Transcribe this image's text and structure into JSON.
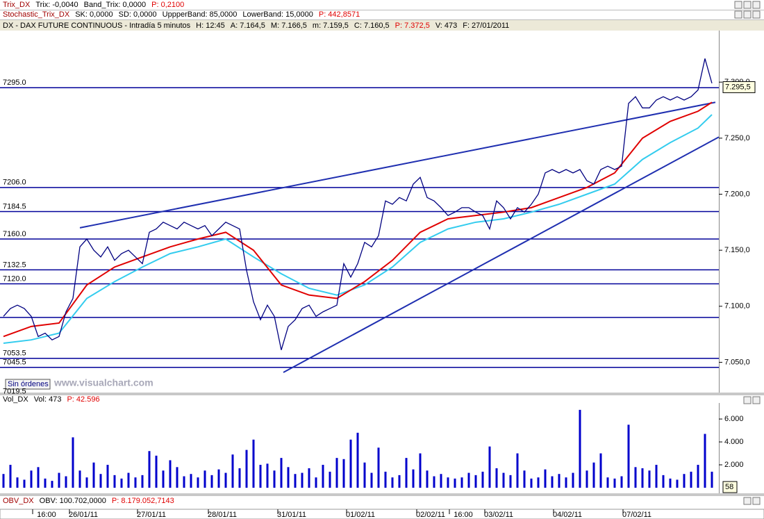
{
  "indicator_rows": [
    {
      "parts": [
        {
          "text": "Trix_DX",
          "color": "#a00000"
        },
        {
          "text": "Trix: -0,0040"
        },
        {
          "text": "Band_Trix: 0,0000"
        },
        {
          "text": "P: 0,2100",
          "color": "#e00000"
        }
      ]
    },
    {
      "parts": [
        {
          "text": "Stochastic_Trix_DX",
          "color": "#a00000"
        },
        {
          "text": "SK: 0,0000"
        },
        {
          "text": "SD: 0,0000"
        },
        {
          "text": "UppperBand: 85,0000"
        },
        {
          "text": "LowerBand: 15,0000"
        },
        {
          "text": "P: 442,8571",
          "color": "#e00000"
        }
      ]
    }
  ],
  "status": "Sin órdenes",
  "watermark": "www.visualchart.com",
  "obv_row": {
    "parts": [
      {
        "text": "OBV_DX",
        "color": "#a00000"
      },
      {
        "text": "OBV: 100.702,0000"
      },
      {
        "text": "P: 8.179.052,7143",
        "color": "#e00000"
      }
    ]
  },
  "chart_data": [
    {
      "type": "line",
      "header_parts": [
        {
          "text": "DX - DAX FUTURE CONTINUOUS - Intradía 5 minutos"
        },
        {
          "text": "H: 12:45"
        },
        {
          "text": "A: 7.164,5"
        },
        {
          "text": "M: 7.166,5"
        },
        {
          "text": "m: 7.159,5"
        },
        {
          "text": "C: 7.160,5"
        },
        {
          "text": "P: 7.372,5",
          "color": "#e00000"
        },
        {
          "text": "V: 473"
        },
        {
          "text": "F: 27/01/2011"
        }
      ],
      "x": [
        0,
        1,
        2,
        3,
        4,
        5,
        6,
        7,
        8,
        9,
        10,
        11,
        12,
        13,
        14,
        15,
        16,
        17,
        18,
        19,
        20,
        21,
        22,
        23,
        24,
        25,
        26,
        27,
        28,
        29,
        30,
        31,
        32,
        33,
        34,
        35,
        36,
        37,
        38,
        39,
        40,
        41,
        42,
        43,
        44,
        45,
        46,
        47,
        48,
        49,
        50,
        51,
        52,
        53,
        54,
        55,
        56,
        57,
        58,
        59,
        60,
        61,
        62,
        63,
        64,
        65,
        66,
        67,
        68,
        69,
        70,
        71,
        72,
        73,
        74,
        75,
        76,
        77,
        78,
        79,
        80,
        81,
        82,
        83,
        84,
        85,
        86,
        87,
        88,
        89,
        90,
        91,
        92,
        93,
        94,
        95,
        96,
        97,
        98,
        99,
        100,
        101,
        102
      ],
      "xlim": [
        -0.5,
        103
      ],
      "xticks": [
        {
          "value": 6.2,
          "label": "16:00"
        },
        {
          "value": 11.5,
          "label": "26/01/11"
        },
        {
          "value": 21.3,
          "label": "27/01/11"
        },
        {
          "value": 31.5,
          "label": "28/01/11"
        },
        {
          "value": 41.5,
          "label": "31/01/11"
        },
        {
          "value": 51.4,
          "label": "01/02/11"
        },
        {
          "value": 61.5,
          "label": "02/02/11"
        },
        {
          "value": 66.2,
          "label": "16:00"
        },
        {
          "value": 71.3,
          "label": "03/02/11"
        },
        {
          "value": 81.2,
          "label": "04/02/11"
        },
        {
          "value": 91.2,
          "label": "07/02/11"
        }
      ],
      "ylim": [
        7023,
        7346
      ],
      "yticks": [
        {
          "value": 7050,
          "label": "7.050,0"
        },
        {
          "value": 7100,
          "label": "7.100,0"
        },
        {
          "value": 7150,
          "label": "7.150,0"
        },
        {
          "value": 7200,
          "label": "7.200,0"
        },
        {
          "value": 7250,
          "label": "7.250,0"
        },
        {
          "value": 7300,
          "label": "7.300,0"
        }
      ],
      "series": [
        {
          "color": "#000080",
          "values": [
            7091,
            7098,
            7101,
            7098,
            7091,
            7073,
            7076,
            7070,
            7073,
            7095,
            7107,
            7153,
            7160,
            7150,
            7144,
            7153,
            7141,
            7147,
            7150,
            7144,
            7138,
            7166,
            7169,
            7175,
            7172,
            7169,
            7175,
            7172,
            7169,
            7172,
            7163,
            7169,
            7175,
            7172,
            7169,
            7132,
            7104,
            7088,
            7101,
            7091,
            7061,
            7082,
            7088,
            7098,
            7101,
            7091,
            7095,
            7098,
            7101,
            7138,
            7126,
            7138,
            7157,
            7153,
            7163,
            7194,
            7191,
            7197,
            7194,
            7209,
            7215,
            7197,
            7194,
            7188,
            7181,
            7184,
            7188,
            7188,
            7184,
            7181,
            7169,
            7194,
            7188,
            7178,
            7188,
            7184,
            7191,
            7200,
            7219,
            7222,
            7219,
            7222,
            7219,
            7222,
            7212,
            7209,
            7222,
            7225,
            7222,
            7225,
            7281,
            7287,
            7277,
            7277,
            7284,
            7287,
            7284,
            7287,
            7284,
            7287,
            7293,
            7321,
            7299
          ]
        },
        {
          "color": "#e00000",
          "x": [
            0,
            4,
            8,
            12,
            16,
            20,
            24,
            28,
            32,
            36,
            40,
            44,
            48,
            52,
            56,
            60,
            64,
            68,
            72,
            76,
            80,
            84,
            88,
            92,
            96,
            100,
            102
          ],
          "values": [
            7073,
            7082,
            7085,
            7119,
            7135,
            7144,
            7153,
            7160,
            7166,
            7150,
            7119,
            7110,
            7107,
            7122,
            7141,
            7166,
            7178,
            7181,
            7184,
            7188,
            7197,
            7206,
            7219,
            7250,
            7265,
            7274,
            7282
          ]
        },
        {
          "color": "#33ccee",
          "x": [
            0,
            4,
            8,
            12,
            16,
            20,
            24,
            28,
            32,
            36,
            40,
            44,
            48,
            52,
            56,
            60,
            64,
            68,
            72,
            76,
            80,
            84,
            88,
            92,
            96,
            100,
            102
          ],
          "values": [
            7067,
            7070,
            7076,
            7107,
            7122,
            7135,
            7147,
            7153,
            7160,
            7144,
            7129,
            7116,
            7110,
            7119,
            7135,
            7157,
            7169,
            7175,
            7178,
            7184,
            7191,
            7200,
            7209,
            7231,
            7246,
            7259,
            7271
          ]
        }
      ],
      "levels": [
        {
          "value": 7295,
          "label": "7295.0"
        },
        {
          "value": 7206,
          "label": "7206.0"
        },
        {
          "value": 7184.5,
          "label": "7184.5"
        },
        {
          "value": 7160,
          "label": "7160.0"
        },
        {
          "value": 7132.5,
          "label": "7132.5"
        },
        {
          "value": 7120,
          "label": "7120.0"
        },
        7090,
        {
          "value": 7053.5,
          "label": "7053.5"
        },
        {
          "value": 7045.5,
          "label": "7045.5"
        },
        {
          "value": 7019.5,
          "label": "7019.5"
        }
      ],
      "level_color": "#000099",
      "trend_lines": [
        {
          "x": [
            11,
            102.5
          ],
          "values": [
            7170,
            7282
          ]
        },
        {
          "x": [
            40.3,
            103
          ],
          "values": [
            7041,
            7251
          ]
        }
      ],
      "trend_color": "#1f2fb0",
      "last_price": {
        "value": 7295.5,
        "label": "7.295,5"
      }
    },
    {
      "type": "bar",
      "header_parts": [
        {
          "text": "Vol_DX"
        },
        {
          "text": "Vol: 473"
        },
        {
          "text": "P: 42.596",
          "color": "#e00000"
        }
      ],
      "color": "#0000cc",
      "ylim": [
        0,
        7400
      ],
      "yticks": [
        {
          "value": 2000,
          "label": "2.000"
        },
        {
          "value": 4000,
          "label": "4.000"
        },
        {
          "value": 6000,
          "label": "6.000"
        }
      ],
      "values": [
        1200,
        2000,
        900,
        700,
        1500,
        1800,
        800,
        600,
        1300,
        1000,
        4400,
        1500,
        900,
        2200,
        1200,
        2000,
        1100,
        800,
        1300,
        900,
        1100,
        3200,
        2800,
        1500,
        2400,
        1800,
        1000,
        1200,
        900,
        1500,
        1100,
        1600,
        1300,
        2900,
        1700,
        3300,
        4200,
        2000,
        2100,
        1500,
        2600,
        1800,
        1200,
        1300,
        1700,
        900,
        2000,
        1400,
        2600,
        2500,
        4200,
        4800,
        2200,
        1300,
        3500,
        1400,
        900,
        1100,
        2600,
        1600,
        3000,
        1500,
        1000,
        1200,
        900,
        800,
        900,
        1300,
        1100,
        1400,
        3600,
        1700,
        1300,
        1100,
        3000,
        1500,
        800,
        900,
        1600,
        1000,
        1200,
        900,
        1300,
        6800,
        1500,
        2200,
        3000,
        900,
        800,
        1000,
        5500,
        1800,
        1700,
        1500,
        2000,
        1100,
        800,
        700,
        1200,
        1400,
        2000,
        4700,
        1400
      ],
      "last_value": 58
    }
  ]
}
